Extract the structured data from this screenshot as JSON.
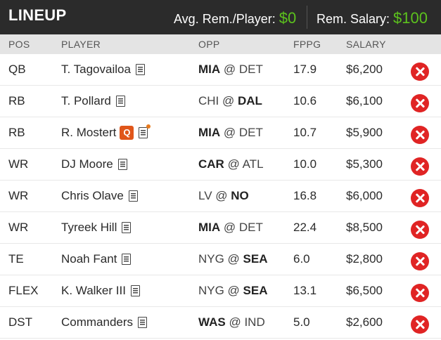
{
  "header": {
    "title": "LINEUP",
    "avg_label": "Avg. Rem./Player: ",
    "avg_value": "$0",
    "rem_label": "Rem. Salary: ",
    "rem_value": "$100"
  },
  "columns": {
    "pos": "POS",
    "player": "PLAYER",
    "opp": "OPP",
    "fppg": "FPPG",
    "salary": "SALARY"
  },
  "rows": [
    {
      "pos": "QB",
      "player": "T. Tagovailoa",
      "opp_pre": "",
      "opp_bold1": "MIA",
      "opp_mid": " @ DET",
      "opp_bold2": "",
      "fppg": "17.9",
      "salary": "$6,200",
      "badge": "",
      "news_alert": false
    },
    {
      "pos": "RB",
      "player": "T. Pollard",
      "opp_pre": "CHI @ ",
      "opp_bold1": "",
      "opp_mid": "",
      "opp_bold2": "DAL",
      "fppg": "10.6",
      "salary": "$6,100",
      "badge": "",
      "news_alert": false
    },
    {
      "pos": "RB",
      "player": "R. Mostert",
      "opp_pre": "",
      "opp_bold1": "MIA",
      "opp_mid": " @ DET",
      "opp_bold2": "",
      "fppg": "10.7",
      "salary": "$5,900",
      "badge": "Q",
      "news_alert": true
    },
    {
      "pos": "WR",
      "player": "DJ Moore",
      "opp_pre": "",
      "opp_bold1": "CAR",
      "opp_mid": " @ ATL",
      "opp_bold2": "",
      "fppg": "10.0",
      "salary": "$5,300",
      "badge": "",
      "news_alert": false
    },
    {
      "pos": "WR",
      "player": "Chris Olave",
      "opp_pre": "LV @ ",
      "opp_bold1": "",
      "opp_mid": "",
      "opp_bold2": "NO",
      "fppg": "16.8",
      "salary": "$6,000",
      "badge": "",
      "news_alert": false
    },
    {
      "pos": "WR",
      "player": "Tyreek Hill",
      "opp_pre": "",
      "opp_bold1": "MIA",
      "opp_mid": " @ DET",
      "opp_bold2": "",
      "fppg": "22.4",
      "salary": "$8,500",
      "badge": "",
      "news_alert": false
    },
    {
      "pos": "TE",
      "player": "Noah Fant",
      "opp_pre": "NYG @ ",
      "opp_bold1": "",
      "opp_mid": "",
      "opp_bold2": "SEA",
      "fppg": "6.0",
      "salary": "$2,800",
      "badge": "",
      "news_alert": false
    },
    {
      "pos": "FLEX",
      "player": "K. Walker III",
      "opp_pre": "NYG @ ",
      "opp_bold1": "",
      "opp_mid": "",
      "opp_bold2": "SEA",
      "fppg": "13.1",
      "salary": "$6,500",
      "badge": "",
      "news_alert": false
    },
    {
      "pos": "DST",
      "player": "Commanders",
      "opp_pre": "",
      "opp_bold1": "WAS",
      "opp_mid": " @ IND",
      "opp_bold2": "",
      "fppg": "5.0",
      "salary": "$2,600",
      "badge": "",
      "news_alert": false
    }
  ],
  "colors": {
    "accent_green": "#5cc21d",
    "remove_red": "#e02424",
    "questionable_badge": "#e0561a"
  },
  "icons": {
    "news": "news-icon",
    "remove": "remove-icon"
  }
}
